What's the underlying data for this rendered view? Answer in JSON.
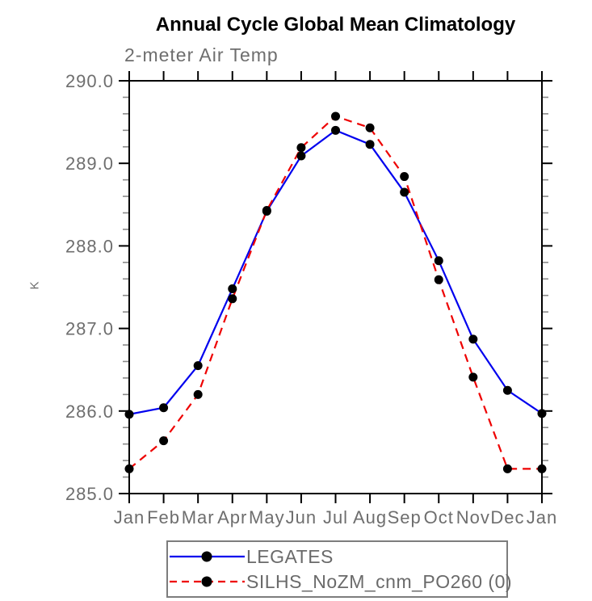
{
  "page": {
    "title": "Annual Cycle Global Mean Climatology",
    "subtitle": "2-meter Air Temp"
  },
  "chart_data": {
    "type": "line",
    "title": "Annual Cycle Global Mean Climatology",
    "subtitle": "2-meter Air Temp",
    "xlabel": "",
    "ylabel": "K",
    "categories": [
      "Jan",
      "Feb",
      "Mar",
      "Apr",
      "May",
      "Jun",
      "Jul",
      "Aug",
      "Sep",
      "Oct",
      "Nov",
      "Dec",
      "Jan"
    ],
    "ylim": [
      285.0,
      290.0
    ],
    "ytick_interval": 1.0,
    "yminor_interval": 0.2,
    "ytick_labels": [
      "285.0",
      "286.0",
      "287.0",
      "288.0",
      "289.0",
      "290.0"
    ],
    "grid": false,
    "frame": "full-box-outward-ticks",
    "legend_position": "bottom-center-boxed",
    "marker": {
      "shape": "circle",
      "color": "#000000",
      "radius": 5.5
    },
    "series": [
      {
        "name": "LEGATES",
        "color": "#0000ee",
        "style": "solid",
        "values": [
          285.96,
          286.04,
          286.55,
          287.48,
          288.42,
          289.09,
          289.4,
          289.23,
          288.65,
          287.82,
          286.87,
          286.25,
          285.97
        ]
      },
      {
        "name": "SILHS_NoZM_cnm_PO260 (0)",
        "color": "#ee0000",
        "style": "dashed",
        "values": [
          285.3,
          285.64,
          286.2,
          287.36,
          288.43,
          289.19,
          289.57,
          289.43,
          288.84,
          287.59,
          286.41,
          285.3,
          285.3
        ]
      }
    ],
    "colors": {
      "axis": "#000000",
      "minor_tick": "#8a8a8a",
      "tick_label": "#6e6e6e",
      "title": "#000000",
      "legend_border": "#7d7d7d"
    }
  }
}
